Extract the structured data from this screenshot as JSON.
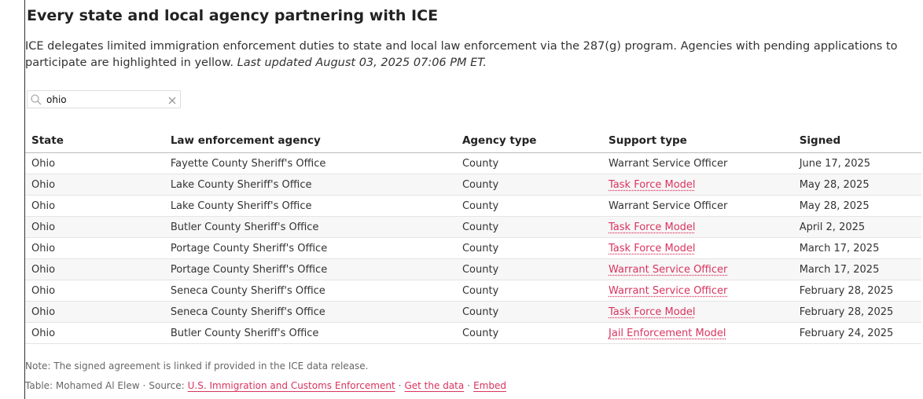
{
  "title": "Every state and local agency partnering with ICE",
  "description": {
    "text": "ICE delegates limited immigration enforcement duties to state and local law enforcement via the 287(g) program. Agencies with pending applications to participate are highlighted in yellow.",
    "updated": "Last updated August 03, 2025 07:06 PM ET."
  },
  "search": {
    "value": "ohio"
  },
  "table": {
    "headers": [
      "State",
      "Law enforcement agency",
      "Agency type",
      "Support type",
      "Signed"
    ],
    "rows": [
      {
        "cells": [
          "Ohio",
          "Fayette County Sheriff's Office",
          "County",
          "Warrant Service Officer",
          "June 17, 2025"
        ],
        "linked": false
      },
      {
        "cells": [
          "Ohio",
          "Lake County Sheriff's Office",
          "County",
          "Task Force Model",
          "May 28, 2025"
        ],
        "linked": true
      },
      {
        "cells": [
          "Ohio",
          "Lake County Sheriff's Office",
          "County",
          "Warrant Service Officer",
          "May 28, 2025"
        ],
        "linked": false
      },
      {
        "cells": [
          "Ohio",
          "Butler County Sheriff's Office",
          "County",
          "Task Force Model",
          "April 2, 2025"
        ],
        "linked": true
      },
      {
        "cells": [
          "Ohio",
          "Portage County Sheriff's Office",
          "County",
          "Task Force Model",
          "March 17, 2025"
        ],
        "linked": true
      },
      {
        "cells": [
          "Ohio",
          "Portage County Sheriff's Office",
          "County",
          "Warrant Service Officer",
          "March 17, 2025"
        ],
        "linked": true
      },
      {
        "cells": [
          "Ohio",
          "Seneca County Sheriff's Office",
          "County",
          "Warrant Service Officer",
          "February 28, 2025"
        ],
        "linked": true
      },
      {
        "cells": [
          "Ohio",
          "Seneca County Sheriff's Office",
          "County",
          "Task Force Model",
          "February 28, 2025"
        ],
        "linked": true
      },
      {
        "cells": [
          "Ohio",
          "Butler County Sheriff's Office",
          "County",
          "Jail Enforcement Model",
          "February 24, 2025"
        ],
        "linked": true
      }
    ]
  },
  "note": "Note: The signed agreement is linked if provided in the ICE data release.",
  "byline": [
    {
      "text": "Table: Mohamed Al Elew"
    },
    {
      "text": "·"
    },
    {
      "text": "Source:"
    },
    {
      "text": "U.S. Immigration and Customs Enforcement",
      "link": true
    },
    {
      "text": "·"
    },
    {
      "text": "Get the data",
      "link": true
    },
    {
      "text": "·"
    },
    {
      "text": "Embed",
      "link": true
    }
  ]
}
